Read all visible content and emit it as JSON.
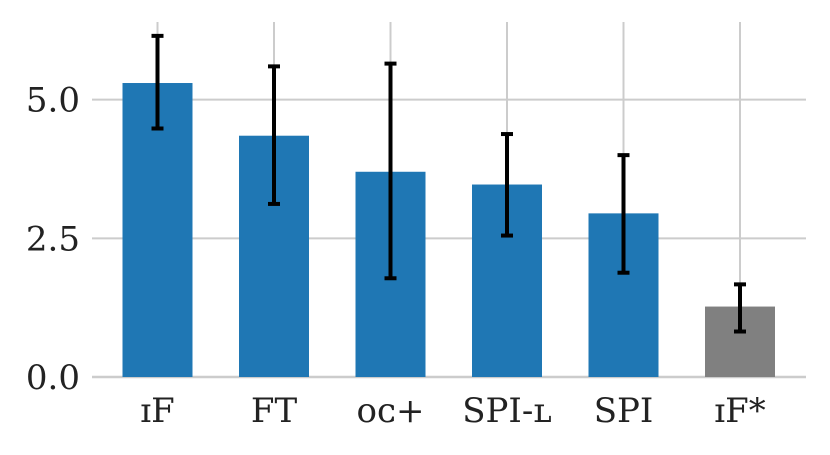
{
  "chart_data": {
    "type": "bar",
    "categories": [
      "ɪF",
      "FT",
      "ᴏᴄ+",
      "SPI-ʟ",
      "SPI",
      "ɪF*"
    ],
    "values": [
      5.3,
      4.35,
      3.7,
      3.47,
      2.95,
      1.27
    ],
    "error_low": [
      4.48,
      3.12,
      1.78,
      2.55,
      1.88,
      0.82
    ],
    "error_high": [
      6.15,
      5.6,
      5.65,
      4.38,
      4.0,
      1.67
    ],
    "bar_colors": [
      "#1f77b4",
      "#1f77b4",
      "#1f77b4",
      "#1f77b4",
      "#1f77b4",
      "#808080"
    ],
    "yticks": [
      "0.0",
      "2.5",
      "5.0"
    ],
    "ytick_values": [
      0,
      2.5,
      5.0
    ],
    "ylim": [
      0,
      6.4
    ],
    "grid": true,
    "title": "",
    "xlabel": "",
    "ylabel": ""
  }
}
